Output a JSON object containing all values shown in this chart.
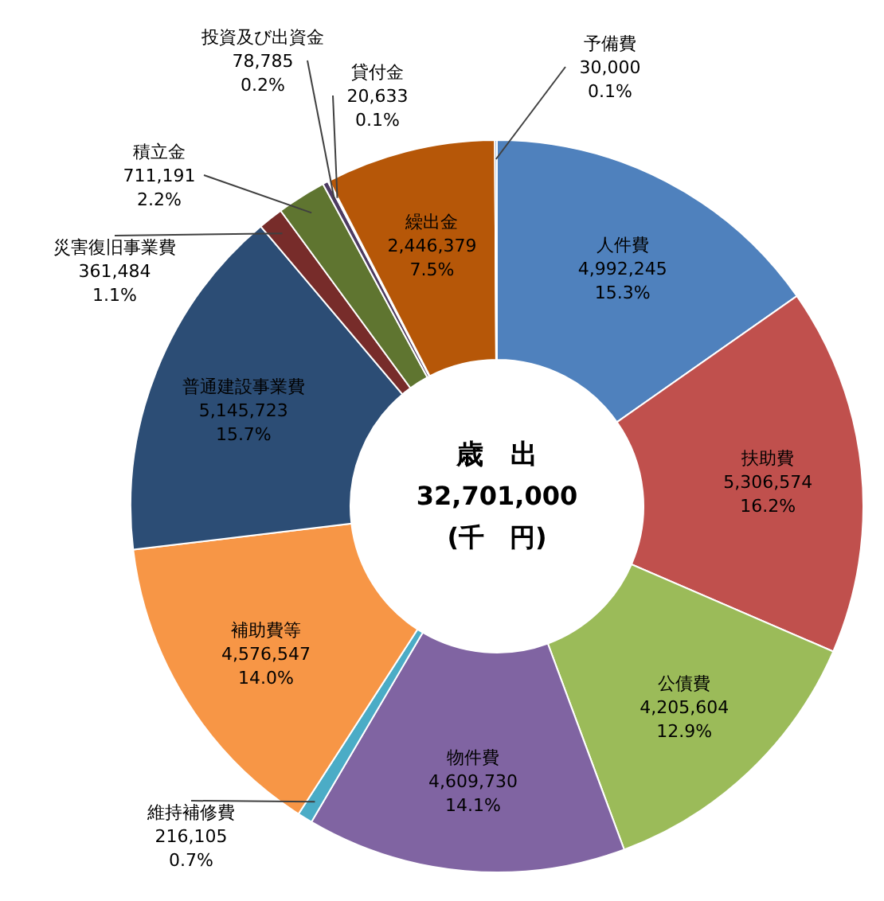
{
  "chart_data": {
    "type": "donut",
    "categories": [
      "人件費",
      "扶助費",
      "公債費",
      "物件費",
      "維持補修費",
      "補助費等",
      "普通建設事業費",
      "災害復旧事業費",
      "積立金",
      "投資及び出資金",
      "貸付金",
      "繰出金",
      "予備費"
    ],
    "values": [
      4992245,
      5306574,
      4205604,
      4609730,
      216105,
      4576547,
      5145723,
      361484,
      711191,
      78785,
      20633,
      2446379,
      30000
    ],
    "colors": [
      "#4f81bd",
      "#c0504d",
      "#9bbb59",
      "#8064a2",
      "#4bacc6",
      "#f79646",
      "#2c4d75",
      "#772c2a",
      "#5f7530",
      "#4d3b62",
      "#276a7c",
      "#b65708",
      "#729aca"
    ],
    "value_labels": [
      "4,992,245\n15.3%",
      "5,306,574\n16.2%",
      "4,205,604\n12.9%",
      "4,609,730\n14.1%",
      "216,105\n0.7%",
      "4,576,547\n14.0%",
      "5,145,723\n15.7%",
      "361,484\n1.1%",
      "711,191\n2.2%",
      "78,785\n0.2%",
      "20,633\n0.1%",
      "2,446,379\n7.5%",
      "30,000\n0.1%"
    ],
    "annotations": [
      "歳　出",
      "32,701,000",
      "(千　円)"
    ]
  }
}
